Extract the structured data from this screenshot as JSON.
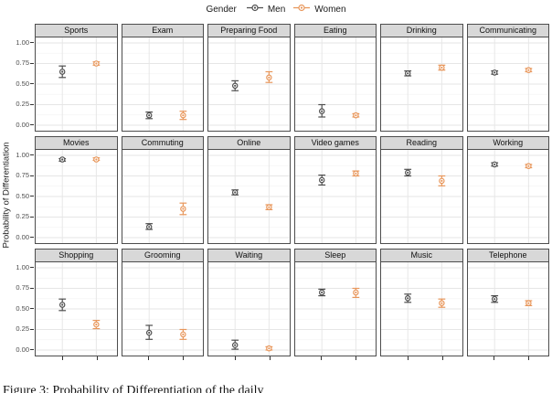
{
  "legend": {
    "title": "Gender",
    "series": [
      {
        "name": "Men",
        "color": "#4f4f4f"
      },
      {
        "name": "Women",
        "color": "#e8965a"
      }
    ]
  },
  "y_axis": {
    "label": "Probability of Differentiation",
    "tick_labels": [
      "1.00",
      "0.75",
      "0.50",
      "0.25",
      "0.00"
    ],
    "tick_values": [
      1.0,
      0.75,
      0.5,
      0.25,
      0.0
    ]
  },
  "caption": "Figure 3: Probability of Differentiation of the daily",
  "theme": {
    "strip_bg": "#d8d8d8",
    "panel_border": "#4d4d4d",
    "grid_major": "#e6e6e6",
    "grid_minor": "#f3f3f3",
    "men_color": "#4f4f4f",
    "women_color": "#e8965a"
  },
  "chart_data": {
    "type": "scatter",
    "subtype": "pointrange-facets",
    "title": "",
    "xlabel": "",
    "ylabel": "Probability of Differentiation",
    "ylim": [
      0,
      1
    ],
    "facet_rows": 3,
    "facet_cols": 6,
    "legend_position": "top",
    "grid": true,
    "categories": [
      "Men",
      "Women"
    ],
    "panels": [
      {
        "title": "Sports",
        "men": {
          "y": 0.65,
          "lo": 0.58,
          "hi": 0.72
        },
        "women": {
          "y": 0.75,
          "lo": 0.73,
          "hi": 0.77
        }
      },
      {
        "title": "Exam",
        "men": {
          "y": 0.12,
          "lo": 0.08,
          "hi": 0.16
        },
        "women": {
          "y": 0.12,
          "lo": 0.07,
          "hi": 0.17
        }
      },
      {
        "title": "Preparing Food",
        "men": {
          "y": 0.48,
          "lo": 0.42,
          "hi": 0.54
        },
        "women": {
          "y": 0.58,
          "lo": 0.52,
          "hi": 0.65
        }
      },
      {
        "title": "Eating",
        "men": {
          "y": 0.17,
          "lo": 0.1,
          "hi": 0.25
        },
        "women": {
          "y": 0.12,
          "lo": 0.1,
          "hi": 0.14
        }
      },
      {
        "title": "Drinking",
        "men": {
          "y": 0.63,
          "lo": 0.6,
          "hi": 0.66
        },
        "women": {
          "y": 0.7,
          "lo": 0.67,
          "hi": 0.73
        }
      },
      {
        "title": "Communicating",
        "men": {
          "y": 0.64,
          "lo": 0.62,
          "hi": 0.66
        },
        "women": {
          "y": 0.67,
          "lo": 0.65,
          "hi": 0.69
        }
      },
      {
        "title": "Movies",
        "men": {
          "y": 0.95,
          "lo": 0.93,
          "hi": 0.96
        },
        "women": {
          "y": 0.95,
          "lo": 0.94,
          "hi": 0.97
        }
      },
      {
        "title": "Commuting",
        "men": {
          "y": 0.13,
          "lo": 0.1,
          "hi": 0.17
        },
        "women": {
          "y": 0.35,
          "lo": 0.28,
          "hi": 0.42
        }
      },
      {
        "title": "Online",
        "men": {
          "y": 0.55,
          "lo": 0.52,
          "hi": 0.58
        },
        "women": {
          "y": 0.37,
          "lo": 0.34,
          "hi": 0.4
        }
      },
      {
        "title": "Video games",
        "men": {
          "y": 0.7,
          "lo": 0.64,
          "hi": 0.76
        },
        "women": {
          "y": 0.78,
          "lo": 0.75,
          "hi": 0.81
        }
      },
      {
        "title": "Reading",
        "men": {
          "y": 0.79,
          "lo": 0.75,
          "hi": 0.83
        },
        "women": {
          "y": 0.69,
          "lo": 0.63,
          "hi": 0.75
        }
      },
      {
        "title": "Working",
        "men": {
          "y": 0.89,
          "lo": 0.87,
          "hi": 0.91
        },
        "women": {
          "y": 0.87,
          "lo": 0.85,
          "hi": 0.89
        }
      },
      {
        "title": "Shopping",
        "men": {
          "y": 0.55,
          "lo": 0.48,
          "hi": 0.62
        },
        "women": {
          "y": 0.31,
          "lo": 0.26,
          "hi": 0.36
        }
      },
      {
        "title": "Grooming",
        "men": {
          "y": 0.21,
          "lo": 0.13,
          "hi": 0.3
        },
        "women": {
          "y": 0.19,
          "lo": 0.13,
          "hi": 0.25
        }
      },
      {
        "title": "Waiting",
        "men": {
          "y": 0.06,
          "lo": 0.01,
          "hi": 0.12
        },
        "women": {
          "y": 0.02,
          "lo": 0.0,
          "hi": 0.04
        }
      },
      {
        "title": "Sleep",
        "men": {
          "y": 0.7,
          "lo": 0.66,
          "hi": 0.74
        },
        "women": {
          "y": 0.7,
          "lo": 0.64,
          "hi": 0.75
        }
      },
      {
        "title": "Music",
        "men": {
          "y": 0.63,
          "lo": 0.58,
          "hi": 0.68
        },
        "women": {
          "y": 0.57,
          "lo": 0.52,
          "hi": 0.62
        }
      },
      {
        "title": "Telephone",
        "men": {
          "y": 0.62,
          "lo": 0.58,
          "hi": 0.66
        },
        "women": {
          "y": 0.57,
          "lo": 0.54,
          "hi": 0.6
        }
      }
    ],
    "x_positions_pct": [
      33,
      75
    ]
  }
}
